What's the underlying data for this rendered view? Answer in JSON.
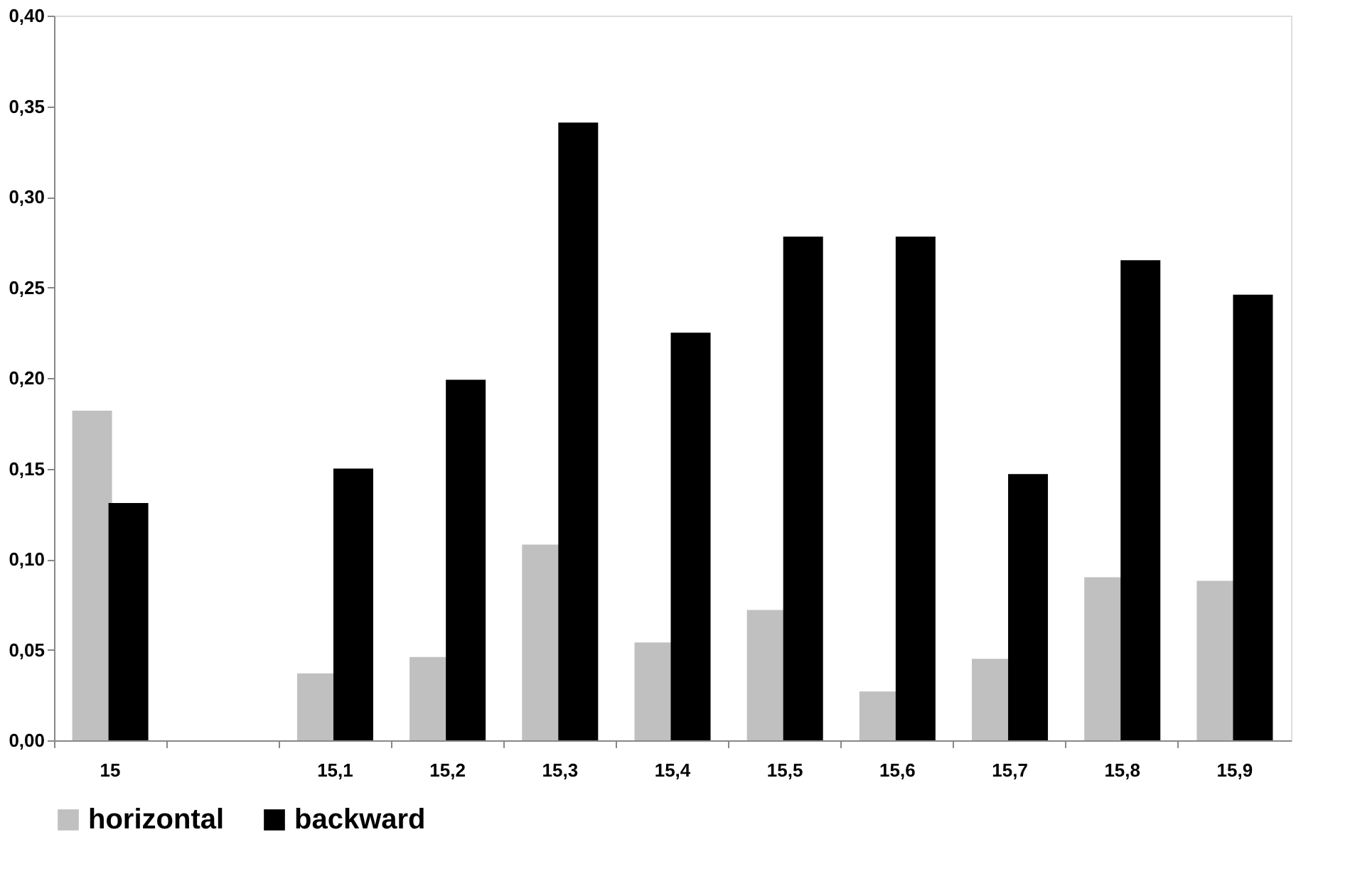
{
  "chart_data": {
    "type": "bar",
    "categories": [
      "15",
      null,
      "15,1",
      "15,2",
      "15,3",
      "15,4",
      "15,5",
      "15,6",
      "15,7",
      "15,8",
      "15,9"
    ],
    "series": [
      {
        "name": "horizontal",
        "color": "#c0c0c0",
        "values": [
          0.182,
          null,
          0.037,
          0.046,
          0.108,
          0.054,
          0.072,
          0.027,
          0.045,
          0.09,
          0.088
        ]
      },
      {
        "name": "backward",
        "color": "#000000",
        "values": [
          0.131,
          null,
          0.15,
          0.199,
          0.341,
          0.225,
          0.278,
          0.278,
          0.147,
          0.265,
          0.246
        ]
      }
    ],
    "ylim": [
      0,
      0.4
    ],
    "yticks": [
      {
        "value": 0,
        "label": "0,00"
      },
      {
        "value": 0.05,
        "label": "0,05"
      },
      {
        "value": 0.1,
        "label": "0,10"
      },
      {
        "value": 0.15,
        "label": "0,15"
      },
      {
        "value": 0.2,
        "label": "0,20"
      },
      {
        "value": 0.25,
        "label": "0,25"
      },
      {
        "value": 0.3,
        "label": "0,30"
      },
      {
        "value": 0.35,
        "label": "0,35"
      },
      {
        "value": 0.4,
        "label": "0,40"
      }
    ],
    "grid": false,
    "legend": "bottom"
  }
}
